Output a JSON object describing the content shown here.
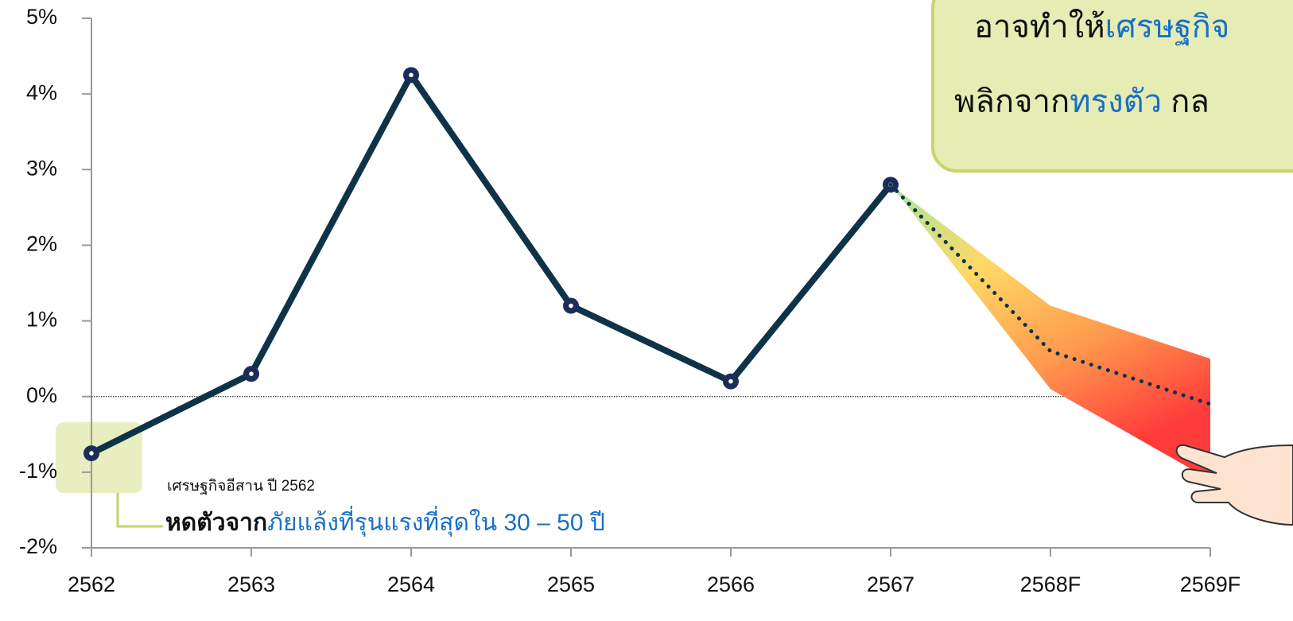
{
  "chart_data": {
    "type": "line",
    "categories": [
      "2562",
      "2563",
      "2564",
      "2565",
      "2566",
      "2567",
      "2568F",
      "2569F"
    ],
    "series": [
      {
        "color": "#0e3349",
        "style": "solid",
        "values": [
          -0.75,
          0.3,
          4.25,
          1.2,
          0.2,
          2.8,
          null,
          null
        ]
      },
      {
        "color": "#0e3349",
        "style": "dotted",
        "values": [
          null,
          null,
          null,
          null,
          null,
          2.8,
          0.6,
          -0.1
        ]
      }
    ],
    "band": {
      "upper": [
        null,
        null,
        null,
        null,
        null,
        2.8,
        1.2,
        0.5
      ],
      "lower": [
        null,
        null,
        null,
        null,
        null,
        2.8,
        0.1,
        -1.1
      ],
      "colors": [
        "#a8e6a0",
        "#ffd966",
        "#ff9a4d",
        "#ff3b3b"
      ]
    },
    "ylim": [
      -2,
      5
    ],
    "yticks": [
      {
        "value": -2,
        "label": "-2%"
      },
      {
        "value": -1,
        "label": "-1%"
      },
      {
        "value": 0,
        "label": "0%"
      },
      {
        "value": 1,
        "label": "1%"
      },
      {
        "value": 2,
        "label": "2%"
      },
      {
        "value": 3,
        "label": "3%"
      },
      {
        "value": 4,
        "label": "4%"
      },
      {
        "value": 5,
        "label": "5%"
      }
    ],
    "zero_line": true,
    "annotations": {
      "note_small": "เศรษฐกิจอีสาน ปี  2562",
      "note_main": [
        "หดตัวจาก",
        "ภัยแล้งที่รุนแรงที่สุดใน 30 – 50 ปี"
      ],
      "callout": [
        [
          "อาจทำให้",
          "เศรษฐกิจ"
        ],
        [
          "พลิกจาก",
          "ทรงตัว",
          " กล"
        ]
      ]
    }
  }
}
